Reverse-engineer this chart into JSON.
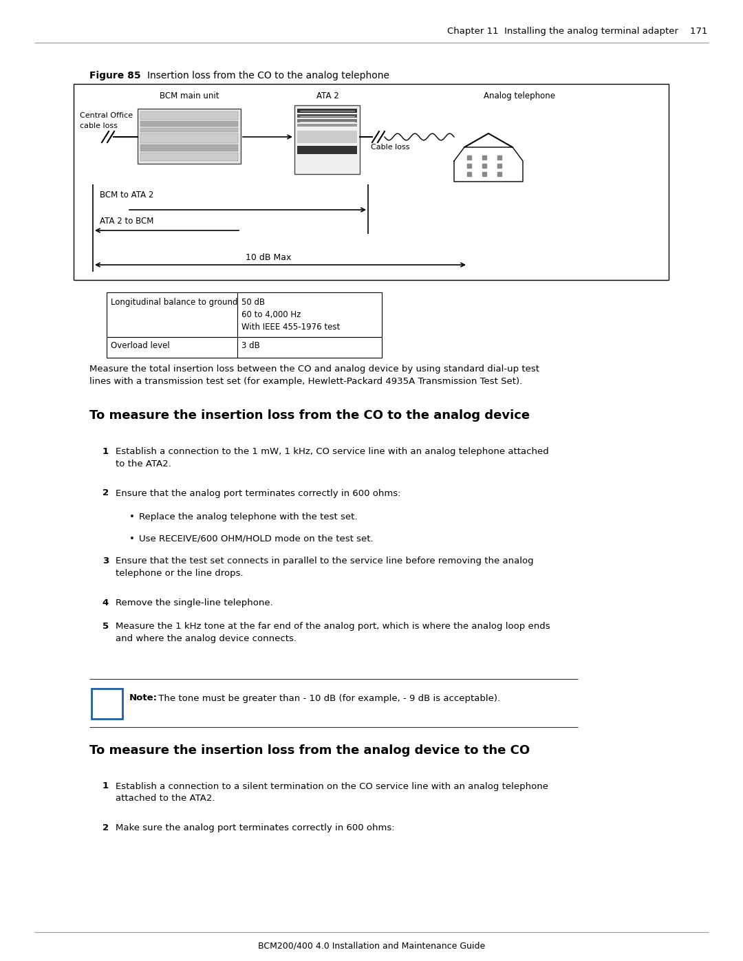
{
  "page_header_text": "Chapter 11  Installing the analog terminal adapter",
  "page_number": "171",
  "figure_label": "Figure 85",
  "figure_title": "Insertion loss from the CO to the analog telephone",
  "diagram_labels": {
    "central_office": "Central Office\ncable loss",
    "bcm_main_unit": "BCM main unit",
    "ata2": "ATA 2",
    "analog_telephone": "Analog telephone",
    "cable_loss": "Cable loss",
    "bcm_to_ata2": "BCM to ATA 2",
    "ata2_to_bcm": "ATA 2 to BCM",
    "ten_db_max": "10 dB Max"
  },
  "table_rows": [
    [
      "Longitudinal balance to ground",
      "50 dB\n60 to 4,000 Hz\nWith IEEE 455-1976 test"
    ],
    [
      "Overload level",
      "3 dB"
    ]
  ],
  "paragraph1": "Measure the total insertion loss between the CO and analog device by using standard dial-up test\nlines with a transmission test set (for example, Hewlett-Packard 4935A Transmission Test Set).",
  "section1_title": "To measure the insertion loss from the CO to the analog device",
  "section1_steps": [
    "Establish a connection to the 1 mW, 1 kHz, CO service line with an analog telephone attached\nto the ATA2.",
    "Ensure that the analog port terminates correctly in 600 ohms:",
    "Ensure that the test set connects in parallel to the service line before removing the analog\ntelephone or the line drops.",
    "Remove the single-line telephone.",
    "Measure the 1 kHz tone at the far end of the analog port, which is where the analog loop ends\nand where the analog device connects."
  ],
  "section1_bullets": [
    "Replace the analog telephone with the test set.",
    "Use RECEIVE/600 OHM/HOLD mode on the test set."
  ],
  "note_bold": "Note:",
  "note_rest": " The tone must be greater than - 10 dB (for example, - 9 dB is acceptable).",
  "section2_title": "To measure the insertion loss from the analog device to the CO",
  "section2_steps": [
    "Establish a connection to a silent termination on the CO service line with an analog telephone\nattached to the ATA2.",
    "Make sure the analog port terminates correctly in 600 ohms:"
  ],
  "footer_text": "BCM200/400 4.0 Installation and Maintenance Guide",
  "bg_color": "#ffffff",
  "text_color": "#000000",
  "line_color": "#999999",
  "note_border_color": "#1a5fa8",
  "note_arrow_color": "#1a5fa8"
}
